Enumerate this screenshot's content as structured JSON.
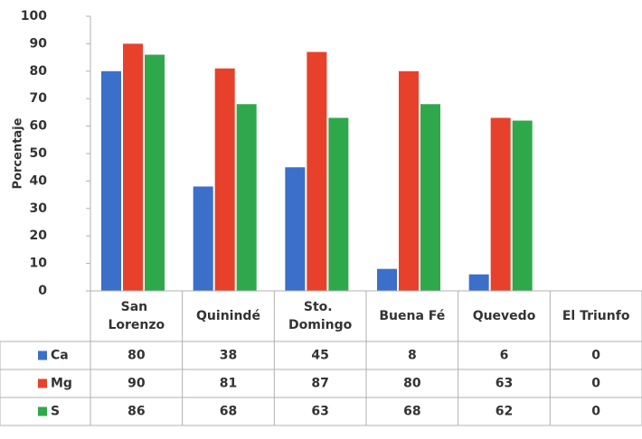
{
  "chart_data": {
    "type": "bar",
    "y_label": "Porcentaje",
    "categories": [
      "San Lorenzo",
      "Quinindé",
      "Sto. Domingo",
      "Buena Fé",
      "Quevedo",
      "El Triunfo"
    ],
    "series": [
      {
        "name": "Ca",
        "color": "#3b6fc9",
        "values": [
          80,
          38,
          45,
          8,
          6,
          0
        ]
      },
      {
        "name": "Mg",
        "color": "#e8412b",
        "values": [
          90,
          81,
          87,
          80,
          63,
          0
        ]
      },
      {
        "name": "S",
        "color": "#2fa84b",
        "values": [
          86,
          68,
          63,
          68,
          62,
          0
        ]
      }
    ],
    "ylim": [
      0,
      100
    ],
    "yticks": [
      0,
      10,
      20,
      30,
      40,
      50,
      60,
      70,
      80,
      90,
      100
    ],
    "data_table": true
  }
}
